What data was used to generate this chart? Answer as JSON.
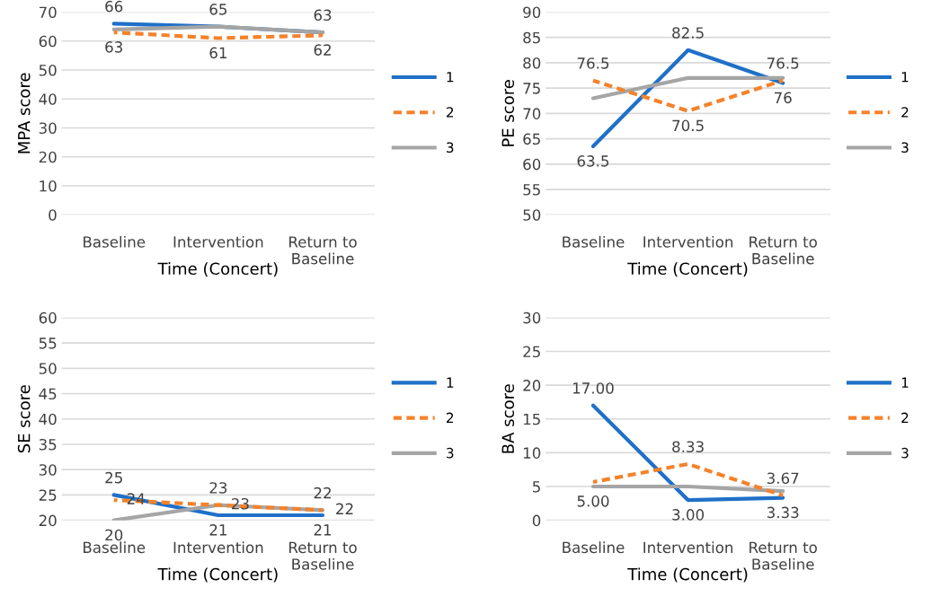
{
  "chart_data": [
    {
      "type": "line",
      "ylabel": "MPA score",
      "xlabel": "Time (Concert)",
      "categories": [
        "Baseline",
        "Intervention",
        "Return to\nBaseline"
      ],
      "ylim": [
        0,
        70
      ],
      "yticks": [
        0,
        10,
        20,
        30,
        40,
        50,
        60,
        70
      ],
      "grid": "y",
      "legend": "right",
      "series": [
        {
          "name": "1",
          "color": "#1f70c8",
          "line_style": "solid",
          "values": [
            66,
            65,
            63
          ],
          "value_labels": [
            "66",
            "65",
            "63"
          ]
        },
        {
          "name": "2",
          "color": "#f5822a",
          "line_style": "dashed",
          "values": [
            63,
            61,
            62
          ],
          "value_labels": [
            "63",
            "61",
            "62"
          ]
        },
        {
          "name": "3",
          "color": "#a5a5a5",
          "line_style": "solid",
          "values": [
            64,
            65,
            63
          ],
          "value_labels": [
            null,
            null,
            null
          ]
        }
      ]
    },
    {
      "type": "line",
      "ylabel": "PE score",
      "xlabel": "Time (Concert)",
      "categories": [
        "Baseline",
        "Intervention",
        "Return to\nBaseline"
      ],
      "ylim": [
        50,
        90
      ],
      "yticks": [
        50,
        55,
        60,
        65,
        70,
        75,
        80,
        85,
        90
      ],
      "grid": "y",
      "legend": "right",
      "series": [
        {
          "name": "1",
          "color": "#1f70c8",
          "line_style": "solid",
          "values": [
            63.5,
            82.5,
            76
          ],
          "value_labels": [
            "63.5",
            "82.5",
            "76"
          ]
        },
        {
          "name": "2",
          "color": "#f5822a",
          "line_style": "dashed",
          "values": [
            76.5,
            70.5,
            76.5
          ],
          "value_labels": [
            "76.5",
            "70.5",
            "76.5"
          ]
        },
        {
          "name": "3",
          "color": "#a5a5a5",
          "line_style": "solid",
          "values": [
            73,
            77,
            77
          ],
          "value_labels": [
            null,
            null,
            null
          ]
        }
      ]
    },
    {
      "type": "line",
      "ylabel": "SE score",
      "xlabel": "Time (Concert)",
      "categories": [
        "Baseline",
        "Intervention",
        "Return to\nBaseline"
      ],
      "ylim": [
        20,
        60
      ],
      "yticks": [
        20,
        25,
        30,
        35,
        40,
        45,
        50,
        55,
        60
      ],
      "grid": "y",
      "legend": "right",
      "series": [
        {
          "name": "1",
          "color": "#1f70c8",
          "line_style": "solid",
          "values": [
            25,
            21,
            21
          ],
          "value_labels": [
            "25",
            "21",
            "21"
          ]
        },
        {
          "name": "2",
          "color": "#f5822a",
          "line_style": "dashed",
          "values": [
            24,
            23,
            22
          ],
          "value_labels": [
            "24",
            "23",
            "22"
          ]
        },
        {
          "name": "3",
          "color": "#a5a5a5",
          "line_style": "solid",
          "values": [
            20,
            23,
            22
          ],
          "value_labels": [
            "20",
            "23",
            "22"
          ]
        }
      ]
    },
    {
      "type": "line",
      "ylabel": "BA score",
      "xlabel": "Time (Concert)",
      "categories": [
        "Baseline",
        "Intervention",
        "Return to\nBaseline"
      ],
      "ylim": [
        0,
        30
      ],
      "yticks": [
        0,
        5,
        10,
        15,
        20,
        25,
        30
      ],
      "grid": "y",
      "legend": "right",
      "series": [
        {
          "name": "1",
          "color": "#1f70c8",
          "line_style": "solid",
          "values": [
            17,
            3,
            3.33
          ],
          "value_labels": [
            "17.00",
            "3.00",
            "3.33"
          ]
        },
        {
          "name": "2",
          "color": "#f5822a",
          "line_style": "dashed",
          "values": [
            5.67,
            8.33,
            3.67
          ],
          "value_labels": [
            null,
            "8.33",
            "3.67"
          ]
        },
        {
          "name": "3",
          "color": "#a5a5a5",
          "line_style": "solid",
          "values": [
            5,
            5,
            4.33
          ],
          "value_labels": [
            "5.00",
            null,
            null
          ]
        }
      ]
    }
  ]
}
